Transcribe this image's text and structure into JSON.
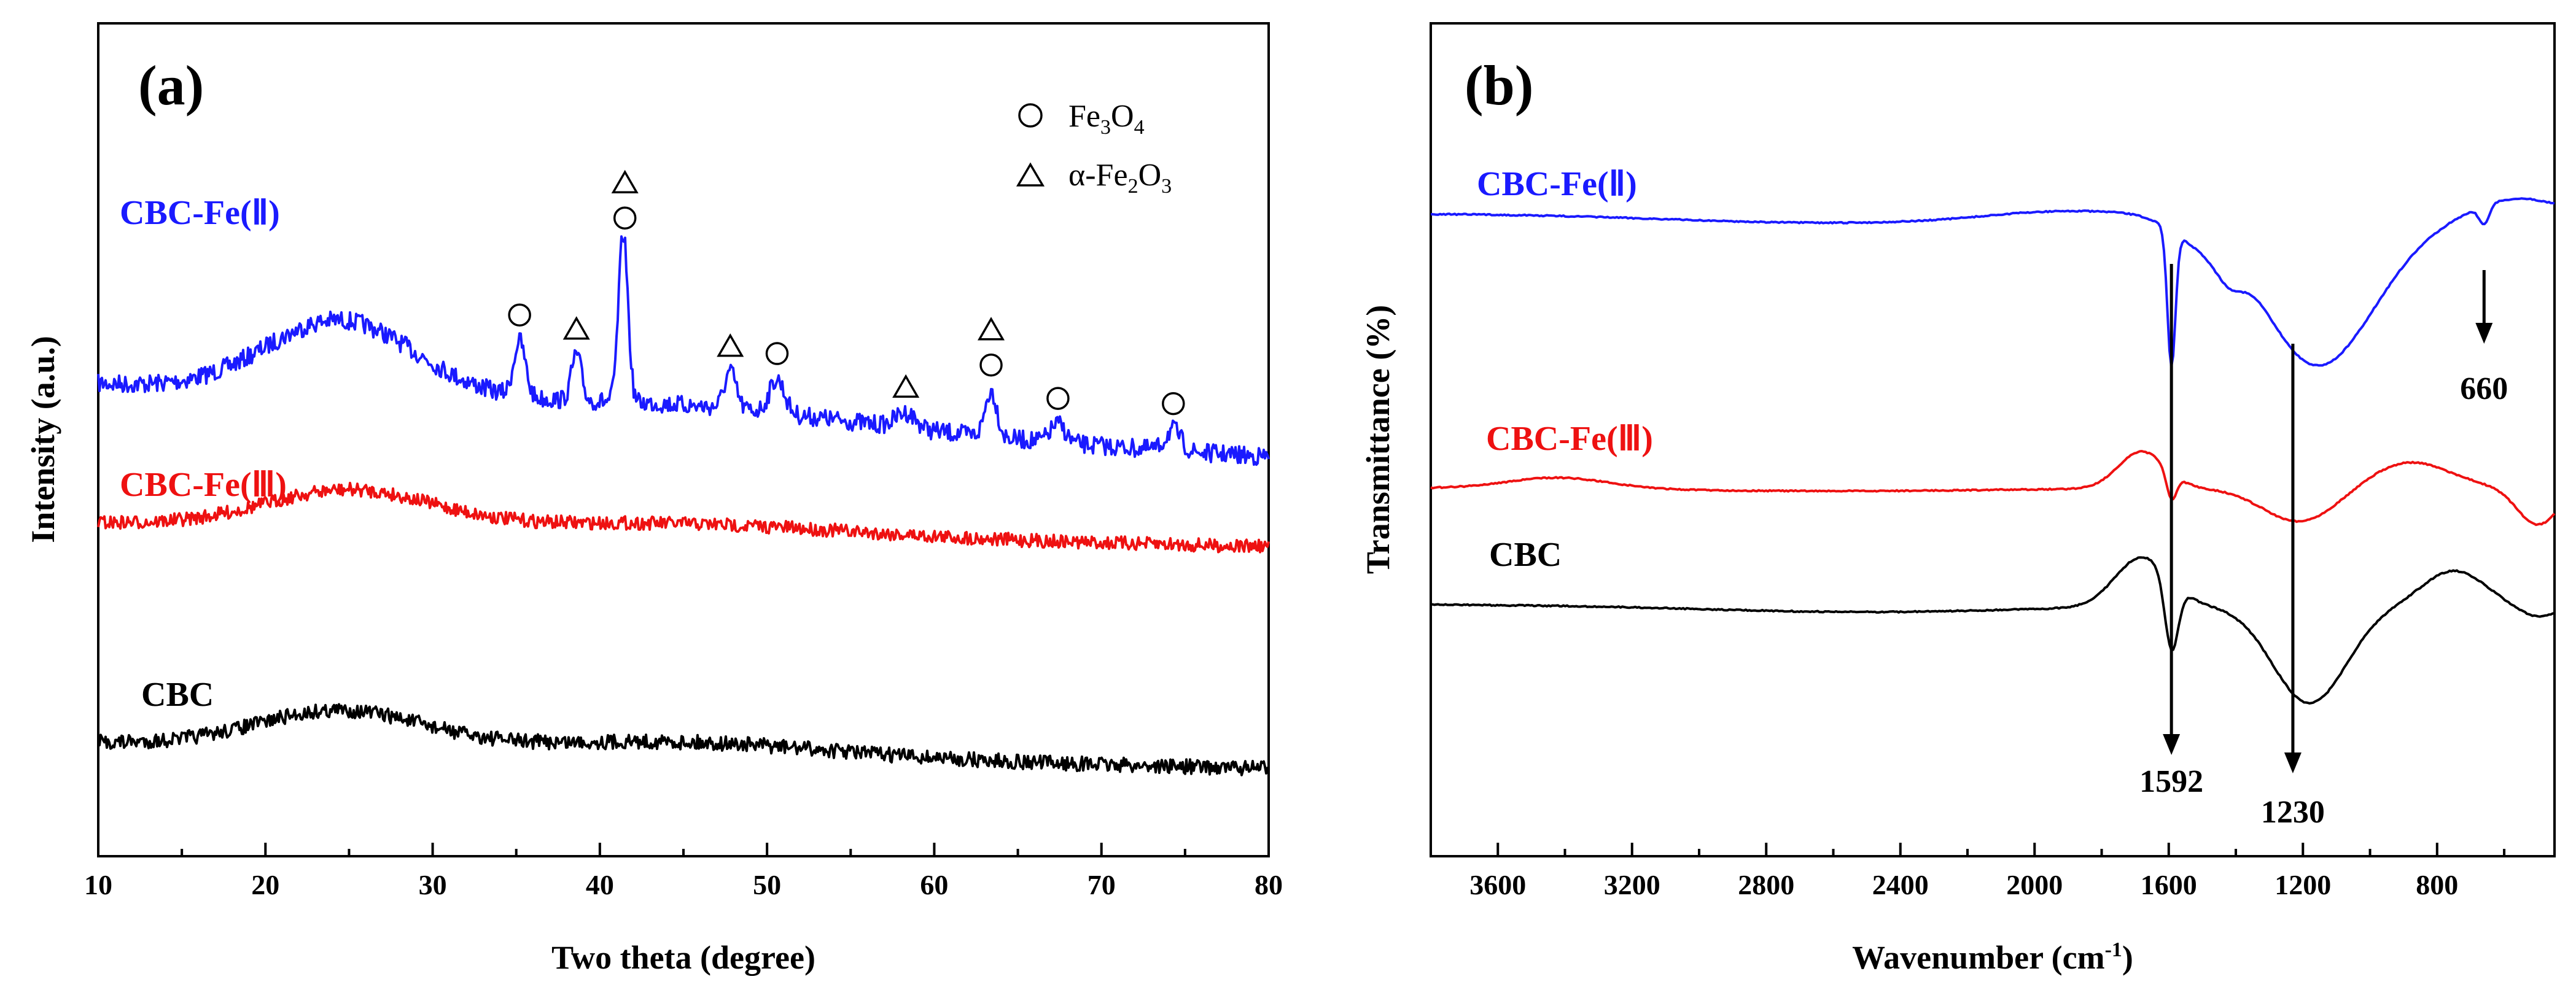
{
  "chart_data": [
    {
      "type": "line",
      "panel": "(a)",
      "title": "",
      "xlabel": "Two theta (degree)",
      "ylabel": "Intensity (a.u.)",
      "xlim": [
        10,
        80
      ],
      "xticks": [
        10,
        20,
        30,
        40,
        50,
        60,
        70,
        80
      ],
      "yticks": false,
      "legend": {
        "position": "top-right",
        "items": [
          {
            "marker": "circle",
            "formula": "Fe3O4",
            "text_main": "Fe",
            "sub1": "3",
            "mid": "O",
            "sub2": "4",
            "tail": ""
          },
          {
            "marker": "triangle",
            "formula": "α-Fe2O3",
            "text_main": "α-Fe",
            "sub1": "2",
            "mid": "O",
            "sub2": "3",
            "tail": ""
          }
        ]
      },
      "series": [
        {
          "name": "CBC-Fe(Ⅱ)",
          "color": "#1a1aff"
        },
        {
          "name": "CBC-Fe(Ⅲ)",
          "color": "#ee1111"
        },
        {
          "name": "CBC",
          "color": "#000000"
        }
      ],
      "peak_markers": [
        {
          "x": 35.2,
          "symbols": [
            "circle"
          ]
        },
        {
          "x": 38.6,
          "symbols": [
            "triangle"
          ]
        },
        {
          "x": 41.5,
          "symbols": [
            "circle",
            "triangle"
          ]
        },
        {
          "x": 47.8,
          "symbols": [
            "triangle"
          ]
        },
        {
          "x": 50.6,
          "symbols": [
            "circle"
          ]
        },
        {
          "x": 58.3,
          "symbols": [
            "triangle"
          ]
        },
        {
          "x": 63.4,
          "symbols": [
            "circle",
            "triangle"
          ]
        },
        {
          "x": 67.4,
          "symbols": [
            "circle"
          ]
        },
        {
          "x": 74.3,
          "symbols": [
            "circle"
          ]
        }
      ]
    },
    {
      "type": "line",
      "panel": "(b)",
      "title": "",
      "xlabel": "Wavenumber (cm",
      "xlabel_sup": "-1",
      "xlabel_end": ")",
      "ylabel": "Transmittance (%)",
      "xlim": [
        3800,
        450
      ],
      "xticks": [
        3600,
        3200,
        2800,
        2400,
        2000,
        1600,
        1200,
        800
      ],
      "yticks": false,
      "series": [
        {
          "name": "CBC-Fe(Ⅱ)",
          "color": "#1a1aff"
        },
        {
          "name": "CBC-Fe(Ⅲ)",
          "color": "#ee1111"
        },
        {
          "name": "CBC",
          "color": "#000000"
        }
      ],
      "annotations": [
        {
          "text": "1592",
          "x": 1592
        },
        {
          "text": "1230",
          "x": 1230
        },
        {
          "text": "660",
          "x": 660
        }
      ]
    }
  ]
}
